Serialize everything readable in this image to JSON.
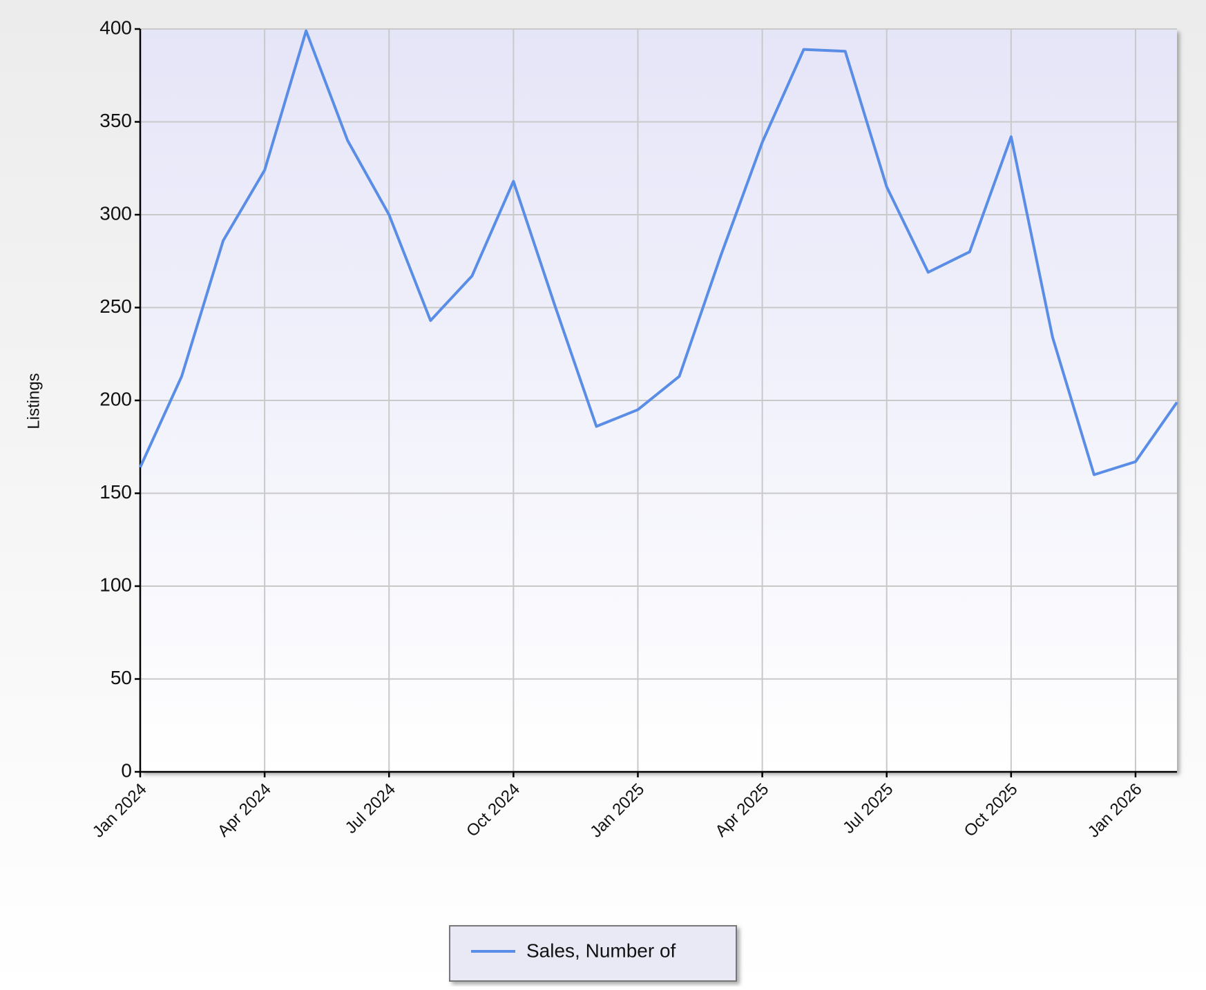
{
  "chart_data": {
    "type": "line",
    "y_label": "Listings",
    "categories": [
      "Jan 2024",
      null,
      null,
      "Apr 2024",
      null,
      null,
      "Jul 2024",
      null,
      null,
      "Oct 2024",
      null,
      null,
      "Jan 2025",
      null,
      null,
      "Apr 2025",
      null,
      null,
      "Jul 2025",
      null,
      null,
      "Oct 2025",
      null,
      null,
      "Jan 2026",
      null
    ],
    "series": [
      {
        "name": "Sales, Number of",
        "color": "#5a8de6",
        "values": [
          164,
          213,
          286,
          324,
          399,
          340,
          300,
          243,
          267,
          318,
          251,
          186,
          195,
          213,
          278,
          339,
          389,
          388,
          315,
          269,
          280,
          342,
          234,
          160,
          167,
          199
        ]
      }
    ],
    "ylim": [
      0,
      400
    ],
    "yticks": [
      0,
      50,
      100,
      150,
      200,
      250,
      300,
      350,
      400
    ],
    "grid": true
  }
}
